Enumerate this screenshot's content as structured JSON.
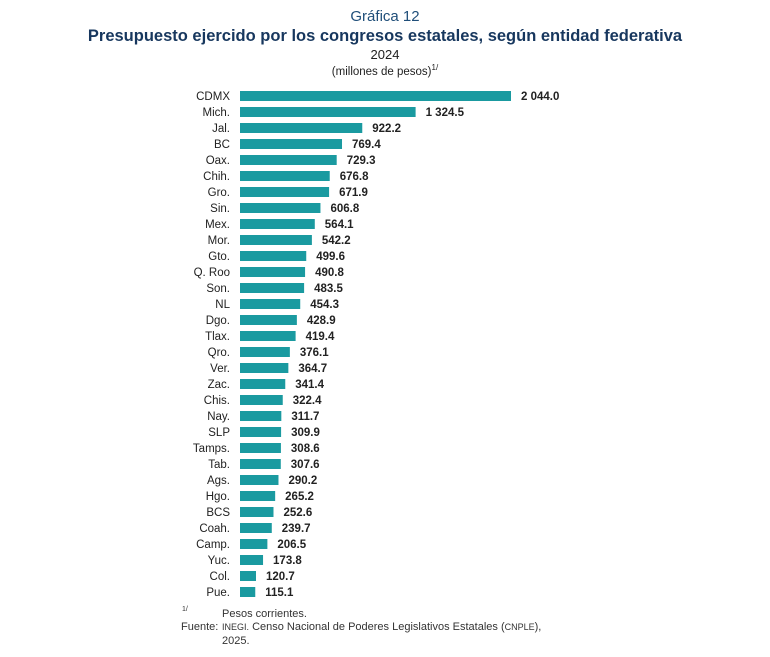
{
  "header": {
    "kicker": "Gráfica 12",
    "title": "Presupuesto ejercido por los congresos estatales, según entidad federativa",
    "year": "2024",
    "units": "(millones de pesos)",
    "units_note": "1/"
  },
  "footnotes": {
    "note_marker": "1/",
    "note_text": "Pesos corrientes.",
    "source_label": "Fuente:",
    "source_org": "INEGI.",
    "source_text_a": "Censo Nacional de Poderes Legislativos Estatales (",
    "source_abbr": "CNPLE",
    "source_text_b": "),",
    "source_year": "2025."
  },
  "colors": {
    "bar": "#1a9aa0",
    "title": "#17375e",
    "kicker": "#1f4e79"
  },
  "chart_data": {
    "type": "bar",
    "orientation": "horizontal",
    "categories": [
      "CDMX",
      "Mich.",
      "Jal.",
      "BC",
      "Oax.",
      "Chih.",
      "Gro.",
      "Sin.",
      "Mex.",
      "Mor.",
      "Gto.",
      "Q. Roo",
      "Son.",
      "NL",
      "Dgo.",
      "Tlax.",
      "Qro.",
      "Ver.",
      "Zac.",
      "Chis.",
      "Nay.",
      "SLP",
      "Tamps.",
      "Tab.",
      "Ags.",
      "Hgo.",
      "BCS",
      "Coah.",
      "Camp.",
      "Yuc.",
      "Col.",
      "Pue."
    ],
    "values": [
      2044.0,
      1324.5,
      922.2,
      769.4,
      729.3,
      676.8,
      671.9,
      606.8,
      564.1,
      542.2,
      499.6,
      490.8,
      483.5,
      454.3,
      428.9,
      419.4,
      376.1,
      364.7,
      341.4,
      322.4,
      311.7,
      309.9,
      308.6,
      307.6,
      290.2,
      265.2,
      252.6,
      239.7,
      206.5,
      173.8,
      120.7,
      115.1
    ],
    "value_labels": [
      "2 044.0",
      "1 324.5",
      "922.2",
      "769.4",
      "729.3",
      "676.8",
      "671.9",
      "606.8",
      "564.1",
      "542.2",
      "499.6",
      "490.8",
      "483.5",
      "454.3",
      "428.9",
      "419.4",
      "376.1",
      "364.7",
      "341.4",
      "322.4",
      "311.7",
      "309.9",
      "308.6",
      "307.6",
      "290.2",
      "265.2",
      "252.6",
      "239.7",
      "206.5",
      "173.8",
      "120.7",
      "115.1"
    ],
    "grid": false,
    "legend": "none"
  }
}
